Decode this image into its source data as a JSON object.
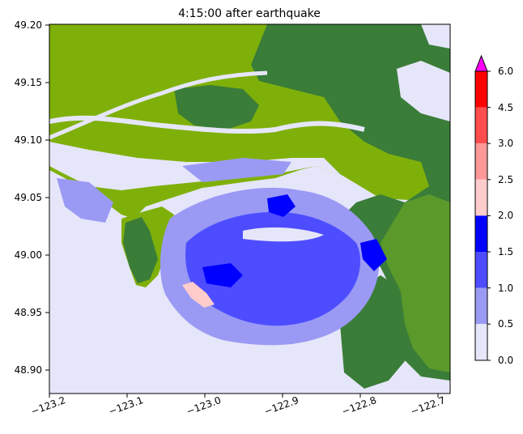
{
  "title": "4:15:00 after earthquake",
  "x_ticks": [
    "−123.2",
    "−123.1",
    "−123.0",
    "−122.9",
    "−122.8",
    "−122.7"
  ],
  "y_ticks": [
    "49.20",
    "49.15",
    "49.10",
    "49.05",
    "49.00",
    "48.95",
    "48.90"
  ],
  "colorbar": {
    "ticks": [
      "0.0",
      "0.5",
      "1.0",
      "1.5",
      "2.0",
      "2.5",
      "3.0",
      "4.5",
      "6.0"
    ],
    "levels": [
      0.0,
      0.5,
      1.0,
      1.5,
      2.0,
      2.5,
      3.0,
      4.5,
      6.0
    ],
    "colors": [
      "#e6e6fa",
      "#9a9af5",
      "#4d4dff",
      "#0000ff",
      "#ffcccc",
      "#ff9999",
      "#ff4d4d",
      "#ff0000"
    ],
    "extend_color": "#ff00ff"
  },
  "colors": {
    "water_base": "#e6e6fa",
    "lowland": "#7fb00a",
    "highland": "#3a7d38",
    "mid_land": "#5b9a2a",
    "depth_05": "#9a9af5",
    "depth_10": "#4d4dff",
    "depth_15": "#0000ff",
    "depth_20": "#ffcccc"
  }
}
